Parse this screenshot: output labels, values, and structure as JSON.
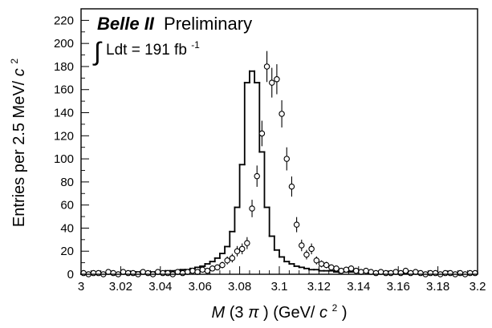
{
  "chart_data": {
    "type": "histogram",
    "title": {
      "experiment": "Belle II",
      "status": "Preliminary",
      "lumi_prefix": "Ldt = 191 fb",
      "lumi_exponent": "-1"
    },
    "xlabel": {
      "mass_symbol": "M",
      "paren_open": "(3",
      "pi_symbol": "π",
      "paren_close": ") (GeV/",
      "c_symbol": "c",
      "exponent": "2",
      "end": ")"
    },
    "ylabel": {
      "main": "Entries per 2.5 MeV/",
      "c_symbol": "c",
      "exponent": "2"
    },
    "xlim": [
      3.0,
      3.2
    ],
    "ylim": [
      0,
      230
    ],
    "x_ticks": [
      {
        "value": 3.0,
        "label": "3"
      },
      {
        "value": 3.02,
        "label": "3.02"
      },
      {
        "value": 3.04,
        "label": "3.04"
      },
      {
        "value": 3.06,
        "label": "3.06"
      },
      {
        "value": 3.08,
        "label": "3.08"
      },
      {
        "value": 3.1,
        "label": "3.1"
      },
      {
        "value": 3.12,
        "label": "3.12"
      },
      {
        "value": 3.14,
        "label": "3.14"
      },
      {
        "value": 3.16,
        "label": "3.16"
      },
      {
        "value": 3.18,
        "label": "3.18"
      },
      {
        "value": 3.2,
        "label": "3.2"
      }
    ],
    "y_ticks": [
      {
        "value": 0,
        "label": "0"
      },
      {
        "value": 20,
        "label": "20"
      },
      {
        "value": 40,
        "label": "40"
      },
      {
        "value": 60,
        "label": "60"
      },
      {
        "value": 80,
        "label": "80"
      },
      {
        "value": 100,
        "label": "100"
      },
      {
        "value": 120,
        "label": "120"
      },
      {
        "value": 140,
        "label": "140"
      },
      {
        "value": 160,
        "label": "160"
      },
      {
        "value": 180,
        "label": "180"
      },
      {
        "value": 200,
        "label": "200"
      },
      {
        "value": 220,
        "label": "220"
      }
    ],
    "bin_width": 0.0025,
    "bin_edges_start": 3.0,
    "series": [
      {
        "kind": "histogram",
        "values": [
          1,
          1,
          1,
          1,
          1,
          1,
          1,
          1,
          1,
          1,
          2,
          2,
          2,
          2,
          2,
          2,
          2,
          3,
          3,
          3,
          4,
          4,
          5,
          6,
          7,
          9,
          11,
          14,
          18,
          24,
          37,
          58,
          95,
          166,
          176,
          166,
          106,
          58,
          33,
          21,
          15,
          11,
          9,
          7,
          6,
          5,
          4,
          4,
          3,
          3,
          3,
          2,
          2,
          2,
          2,
          2,
          2,
          2,
          1,
          1,
          1,
          1,
          1,
          1,
          1,
          1,
          1,
          1,
          1,
          1,
          1,
          1,
          1,
          1,
          1,
          1,
          1,
          1,
          1,
          1
        ]
      },
      {
        "kind": "points",
        "x": [
          3.00125,
          3.00375,
          3.00625,
          3.00875,
          3.01125,
          3.01375,
          3.01625,
          3.01875,
          3.02125,
          3.02375,
          3.02625,
          3.02875,
          3.03125,
          3.03375,
          3.03625,
          3.03875,
          3.04125,
          3.04375,
          3.04625,
          3.04875,
          3.05125,
          3.05375,
          3.05625,
          3.05875,
          3.06125,
          3.06375,
          3.06625,
          3.06875,
          3.07125,
          3.07375,
          3.07625,
          3.07875,
          3.08125,
          3.08375,
          3.08625,
          3.08875,
          3.09125,
          3.09375,
          3.09625,
          3.09875,
          3.10125,
          3.10375,
          3.10625,
          3.10875,
          3.11125,
          3.11375,
          3.11625,
          3.11875,
          3.12125,
          3.12375,
          3.12625,
          3.12875,
          3.13125,
          3.13375,
          3.13625,
          3.13875,
          3.14125,
          3.14375,
          3.14625,
          3.14875,
          3.15125,
          3.15375,
          3.15625,
          3.15875,
          3.16125,
          3.16375,
          3.16625,
          3.16875,
          3.17125,
          3.17375,
          3.17625,
          3.17875,
          3.18125,
          3.18375,
          3.18625,
          3.18875,
          3.19125,
          3.19375,
          3.19625,
          3.19875
        ],
        "y": [
          1,
          0,
          1,
          1,
          0,
          2,
          1,
          0,
          2,
          1,
          1,
          0,
          2,
          1,
          0,
          2,
          1,
          1,
          0,
          2,
          1,
          2,
          3,
          2,
          4,
          3,
          5,
          6,
          8,
          12,
          14,
          20,
          22,
          27,
          57,
          85,
          122,
          180,
          166,
          169,
          139,
          100,
          76,
          43,
          25,
          17,
          22,
          12,
          9,
          8,
          6,
          5,
          3,
          4,
          5,
          3,
          2,
          3,
          2,
          1,
          2,
          1,
          1,
          2,
          1,
          3,
          1,
          2,
          1,
          0,
          1,
          1,
          0,
          1,
          1,
          0,
          1,
          0,
          1,
          1
        ]
      }
    ]
  }
}
